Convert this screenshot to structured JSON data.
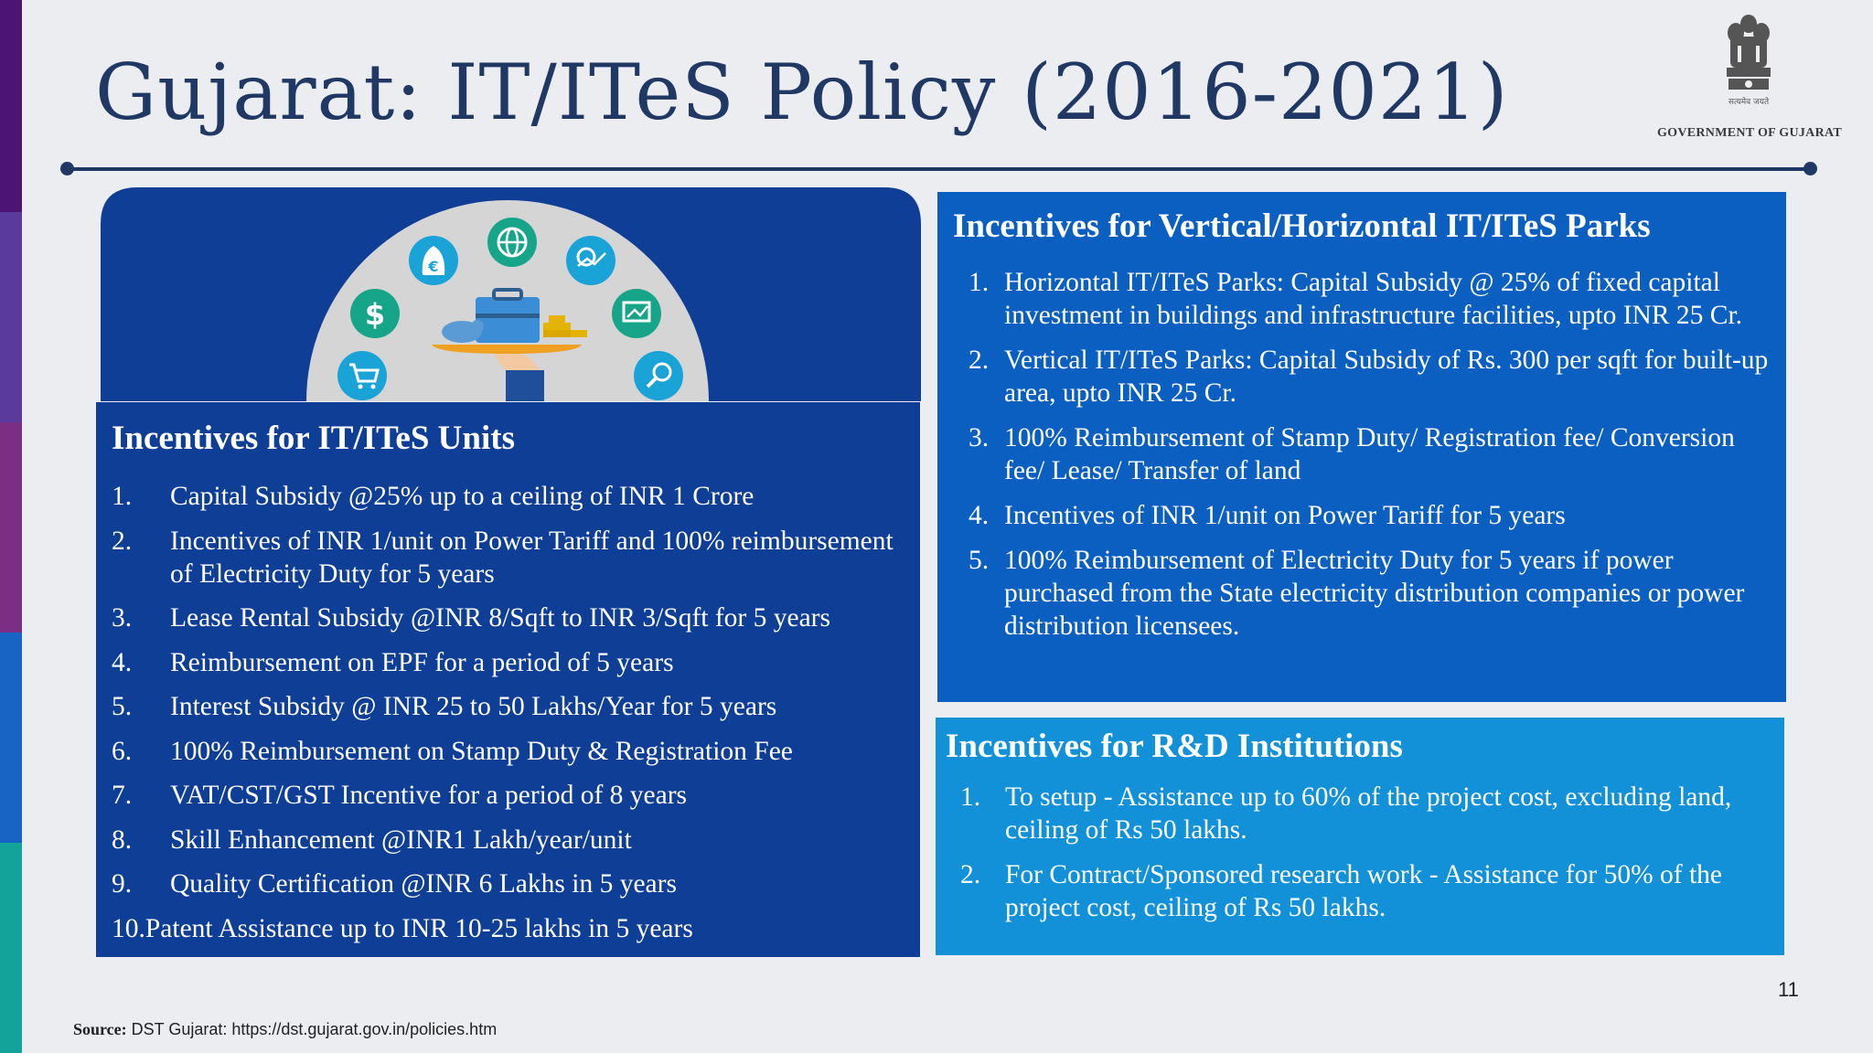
{
  "slide": {
    "title": "Gujarat: IT/ITeS Policy (2016-2021)",
    "page_number": "11",
    "colors": {
      "title": "#1f3864",
      "units_box": "#0f3e96",
      "parks_box": "#0b5fc0",
      "rd_box": "#1291d8",
      "stripe": [
        "#4c1473",
        "#5b3a9e",
        "#7a2f85",
        "#1764c4",
        "#14a39a"
      ]
    }
  },
  "logo": {
    "caption": "GOVERNMENT OF GUJARAT",
    "icon": "state-emblem-icon"
  },
  "illustration": {
    "icons": [
      "euro-bag-icon",
      "globe-icon",
      "analytics-icon",
      "dollar-icon",
      "presentation-chart-icon",
      "cart-icon",
      "search-icon",
      "briefcase-on-tray-icon",
      "piggy-bank-icon",
      "coins-icon"
    ]
  },
  "units": {
    "heading": "Incentives for IT/ITeS Units",
    "items": [
      {
        "num": "1.",
        "text": "Capital Subsidy @25% up to a ceiling of INR 1 Crore"
      },
      {
        "num": "2.",
        "text": "Incentives of INR 1/unit on Power Tariff and 100% reimbursement of Electricity Duty for 5 years"
      },
      {
        "num": "3.",
        "text": "Lease Rental Subsidy @INR 8/Sqft to INR 3/Sqft for 5 years"
      },
      {
        "num": "4.",
        "text": "Reimbursement on EPF for a period of 5 years"
      },
      {
        "num": "5.",
        "text": "Interest Subsidy @ INR 25 to 50 Lakhs/Year for 5 years"
      },
      {
        "num": "6.",
        "text": "100% Reimbursement on Stamp Duty & Registration Fee"
      },
      {
        "num": "7.",
        "text": "VAT/CST/GST Incentive for a period of 8 years"
      },
      {
        "num": "8.",
        "text": "Skill Enhancement @INR1 Lakh/year/unit"
      },
      {
        "num": "9.",
        "text": "Quality Certification @INR 6 Lakhs in 5 years"
      },
      {
        "num": "10.",
        "text": "Patent Assistance up to INR 10-25 lakhs in 5 years"
      }
    ]
  },
  "parks": {
    "heading": "Incentives for Vertical/Horizontal IT/ITeS Parks",
    "items": [
      {
        "num": "1.",
        "text": "Horizontal IT/ITeS Parks: Capital Subsidy @ 25% of fixed capital investment in buildings and infrastructure facilities, upto INR 25 Cr."
      },
      {
        "num": "2.",
        "text": "Vertical IT/ITeS Parks: Capital Subsidy of Rs. 300 per sqft for built-up area, upto INR 25 Cr."
      },
      {
        "num": "3.",
        "text": "100% Reimbursement of Stamp Duty/ Registration fee/ Conversion fee/ Lease/ Transfer of land"
      },
      {
        "num": "4.",
        "text": "Incentives of INR 1/unit on Power Tariff  for 5 years"
      },
      {
        "num": "5.",
        "text": "100% Reimbursement of Electricity Duty  for 5 years if power purchased from the State electricity distribution companies or power distribution licensees."
      }
    ]
  },
  "rd": {
    "heading": "Incentives for R&D Institutions",
    "items": [
      {
        "num": "1.",
        "text": "To setup - Assistance up to 60% of the project cost, excluding land, ceiling of Rs 50 lakhs."
      },
      {
        "num": "2.",
        "text": "For Contract/Sponsored research work  -  Assistance for 50% of the project cost, ceiling of Rs 50 lakhs."
      }
    ]
  },
  "source": {
    "label": "Source:",
    "text": " DST Gujarat: https://dst.gujarat.gov.in/policies.htm"
  }
}
